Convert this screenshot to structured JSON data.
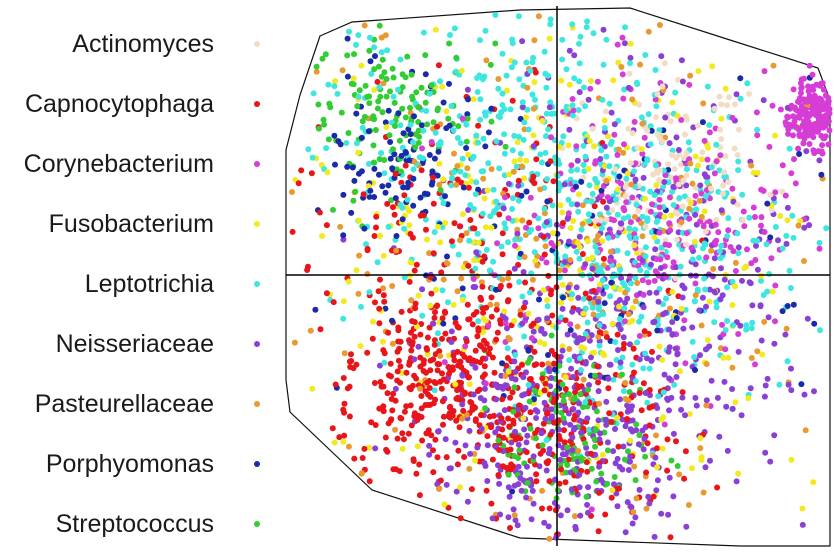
{
  "chart_data": {
    "type": "scatter",
    "title": "",
    "xlabel": "",
    "ylabel": "",
    "xlim": [
      -1,
      1
    ],
    "ylim": [
      -1,
      1
    ],
    "grid": false,
    "axes": "crosshair through origin",
    "hull": "convex polygon outline",
    "legend_placement": "left",
    "series": [
      {
        "name": "Actinomyces",
        "color": "#f2dcc6",
        "region": [
          [
            0.4,
            0.4,
            0.3
          ]
        ],
        "count": 120
      },
      {
        "name": "Capnocytophaga",
        "color": "#e8151b",
        "region": [
          [
            -0.35,
            0.0,
            0.55
          ],
          [
            0.0,
            -0.55,
            0.35
          ],
          [
            -0.45,
            -0.4,
            0.25
          ]
        ],
        "count": 700
      },
      {
        "name": "Corynebacterium",
        "color": "#d63cd6",
        "region": [
          [
            0.35,
            0.15,
            0.45
          ],
          [
            0.95,
            0.6,
            0.1
          ]
        ],
        "count": 420
      },
      {
        "name": "Fusobacterium",
        "color": "#f2ea1e",
        "region": [
          [
            0.0,
            0.1,
            0.8
          ]
        ],
        "count": 300
      },
      {
        "name": "Leptotrichia",
        "color": "#3ee6e0",
        "region": [
          [
            -0.2,
            0.45,
            0.55
          ],
          [
            0.3,
            0.1,
            0.5
          ]
        ],
        "count": 650
      },
      {
        "name": "Neisseriaceae",
        "color": "#8a3fd6",
        "region": [
          [
            0.3,
            0.0,
            0.6
          ],
          [
            0.0,
            -0.6,
            0.4
          ]
        ],
        "count": 650
      },
      {
        "name": "Pasteurellaceae",
        "color": "#e89a30",
        "region": [
          [
            0.0,
            0.0,
            0.8
          ]
        ],
        "count": 220
      },
      {
        "name": "Porphyomonas",
        "color": "#1a2aa8",
        "region": [
          [
            -0.55,
            0.45,
            0.25
          ],
          [
            0.0,
            0.0,
            0.7
          ]
        ],
        "count": 180
      },
      {
        "name": "Streptococcus",
        "color": "#33cc33",
        "region": [
          [
            -0.6,
            0.6,
            0.25
          ],
          [
            0.05,
            -0.6,
            0.25
          ]
        ],
        "count": 240
      }
    ]
  }
}
